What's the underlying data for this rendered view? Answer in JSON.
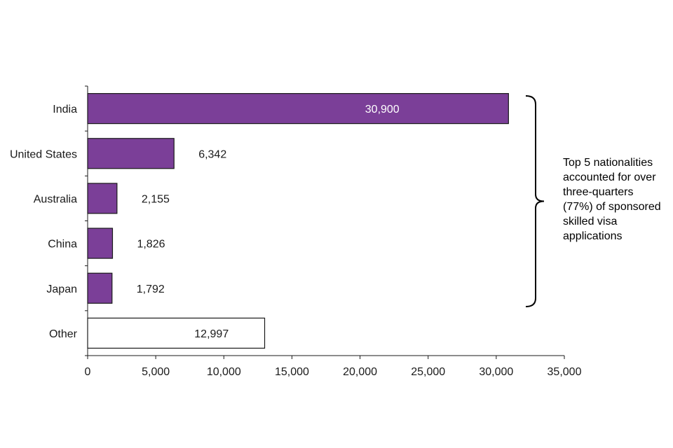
{
  "chart_data": {
    "type": "bar",
    "orientation": "horizontal",
    "title": "",
    "xlabel": "",
    "ylabel": "",
    "categories": [
      "India",
      "United States",
      "Australia",
      "China",
      "Japan",
      "Other"
    ],
    "values": [
      30900,
      6342,
      2155,
      1826,
      1792,
      12997
    ],
    "value_labels": [
      "30,900",
      "6,342",
      "2,155",
      "1,826",
      "1,792",
      "12,997"
    ],
    "xlim": [
      0,
      35000
    ],
    "xticks": [
      0,
      5000,
      10000,
      15000,
      20000,
      25000,
      30000,
      35000
    ],
    "xtick_labels": [
      "0",
      "5,000",
      "10,000",
      "15,000",
      "20,000",
      "25,000",
      "30,000",
      "35,000"
    ],
    "grid": false,
    "colors": {
      "highlight": "#7b3f98",
      "other": "#ffffff",
      "outline": "#1a1a1a",
      "label_on_bar": "#ffffff",
      "label": "#1a1a1a"
    },
    "highlight_count": 5,
    "annotation": {
      "bracket": "right",
      "covers": [
        "India",
        "United States",
        "Australia",
        "China",
        "Japan"
      ],
      "lines": [
        "Top 5 nationalities",
        "accounted for over",
        "three-quarters",
        "(77%) of sponsored",
        "skilled visa",
        "applications"
      ]
    }
  }
}
